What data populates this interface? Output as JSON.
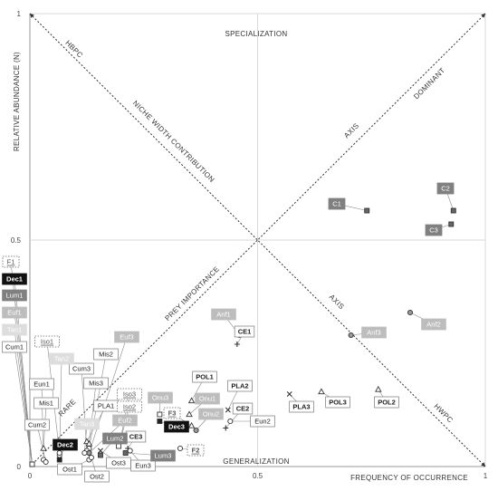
{
  "chart_data": {
    "type": "scatter",
    "title": "",
    "xlabel": "FREQUENCY OF OCCURRENCE",
    "ylabel": "RELATIVE ABUNDANCE (N)",
    "xlim": [
      0,
      1
    ],
    "ylim": [
      0,
      1
    ],
    "x_ticks": [
      {
        "v": 0,
        "t": "0"
      },
      {
        "v": 0.5,
        "t": "0.5"
      },
      {
        "v": 1,
        "t": "1"
      }
    ],
    "y_ticks": [
      {
        "v": 0,
        "t": "0"
      },
      {
        "v": 0.5,
        "t": "0.5"
      },
      {
        "v": 1,
        "t": "1"
      }
    ],
    "grid": true,
    "annotations": {
      "specialization": "SPECIALIZATION",
      "generalization": "GENERALIZATION",
      "hbpc": "HBPC",
      "niche_width": "NICHE WIDTH CONTRIBUTION",
      "dominant": "DOMINANT",
      "axis_upper": "AXIS",
      "prey_importance": "PREY IMPORTANCE",
      "rare": "RARE",
      "axis_lower": "AXIS",
      "hwpc": "HWPC"
    },
    "points": [
      {
        "label": "C1",
        "x": 0.74,
        "y": 0.565,
        "marker": "square",
        "style": "mid"
      },
      {
        "label": "C2",
        "x": 0.93,
        "y": 0.565,
        "marker": "square",
        "style": "mid"
      },
      {
        "label": "C3",
        "x": 0.925,
        "y": 0.535,
        "marker": "square",
        "style": "mid"
      },
      {
        "label": "Anf1",
        "x": 0.46,
        "y": 0.29,
        "marker": "circle",
        "style": "light"
      },
      {
        "label": "Anf2",
        "x": 0.835,
        "y": 0.34,
        "marker": "circle",
        "style": "light"
      },
      {
        "label": "Anf3",
        "x": 0.705,
        "y": 0.29,
        "marker": "circle",
        "style": "light"
      },
      {
        "label": "CE1",
        "x": 0.455,
        "y": 0.27,
        "marker": "plus",
        "style": "white"
      },
      {
        "label": "POL1",
        "x": 0.355,
        "y": 0.145,
        "marker": "triangle",
        "style": "white"
      },
      {
        "label": "POL2",
        "x": 0.765,
        "y": 0.17,
        "marker": "triangle",
        "style": "white"
      },
      {
        "label": "POL3",
        "x": 0.64,
        "y": 0.165,
        "marker": "triangle",
        "style": "white"
      },
      {
        "label": "PLA1",
        "x": 0.125,
        "y": 0.055,
        "marker": "triangle",
        "style": "white"
      },
      {
        "label": "PLA2",
        "x": 0.435,
        "y": 0.125,
        "marker": "x",
        "style": "white"
      },
      {
        "label": "PLA3",
        "x": 0.57,
        "y": 0.16,
        "marker": "x",
        "style": "white"
      },
      {
        "label": "CE2",
        "x": 0.43,
        "y": 0.085,
        "marker": "plus",
        "style": "white"
      },
      {
        "label": "CE3",
        "x": 0.215,
        "y": 0.04,
        "marker": "plus",
        "style": "white"
      },
      {
        "label": "Onu1",
        "x": 0.35,
        "y": 0.115,
        "marker": "triangle",
        "style": "light"
      },
      {
        "label": "Onu2",
        "x": 0.365,
        "y": 0.08,
        "marker": "circle",
        "style": "light"
      },
      {
        "label": "Onu3",
        "x": 0.285,
        "y": 0.115,
        "marker": "square",
        "style": "light"
      },
      {
        "label": "Eun1",
        "x": 0.03,
        "y": 0.015,
        "marker": "circle",
        "style": "white"
      },
      {
        "label": "Eun2",
        "x": 0.44,
        "y": 0.1,
        "marker": "circle",
        "style": "white"
      },
      {
        "label": "Eun3",
        "x": 0.22,
        "y": 0.035,
        "marker": "circle",
        "style": "white"
      },
      {
        "label": "Mis1",
        "x": 0.03,
        "y": 0.04,
        "marker": "triangle",
        "style": "white"
      },
      {
        "label": "Mis2",
        "x": 0.13,
        "y": 0.04,
        "marker": "circle",
        "style": "white"
      },
      {
        "label": "Mis3",
        "x": 0.13,
        "y": 0.05,
        "marker": "triangle",
        "style": "white"
      },
      {
        "label": "Cum1",
        "x": 0.005,
        "y": 0.005,
        "marker": "square",
        "style": "white"
      },
      {
        "label": "Cum2",
        "x": 0.035,
        "y": 0.01,
        "marker": "circle",
        "style": "white"
      },
      {
        "label": "Cum3",
        "x": 0.125,
        "y": 0.035,
        "marker": "circle",
        "style": "white"
      },
      {
        "label": "Dec1",
        "x": 0.005,
        "y": 0.005,
        "marker": "square",
        "style": "dark"
      },
      {
        "label": "Dec2",
        "x": 0.065,
        "y": 0.015,
        "marker": "square",
        "style": "dark"
      },
      {
        "label": "Dec3",
        "x": 0.285,
        "y": 0.1,
        "marker": "square",
        "style": "dark"
      },
      {
        "label": "Lum1",
        "x": 0.005,
        "y": 0.005,
        "marker": "square",
        "style": "mid"
      },
      {
        "label": "Lum2",
        "x": 0.155,
        "y": 0.025,
        "marker": "square",
        "style": "mid"
      },
      {
        "label": "Lum3",
        "x": 0.21,
        "y": 0.03,
        "marker": "square",
        "style": "mid"
      },
      {
        "label": "Euf1",
        "x": 0.005,
        "y": 0.005,
        "marker": "square",
        "style": "light"
      },
      {
        "label": "Euf2",
        "x": 0.13,
        "y": 0.03,
        "marker": "circle",
        "style": "light"
      },
      {
        "label": "Euf3",
        "x": 0.13,
        "y": 0.03,
        "marker": "circle",
        "style": "light"
      },
      {
        "label": "Tan1",
        "x": 0.005,
        "y": 0.005,
        "marker": "square",
        "style": "pale"
      },
      {
        "label": "Tan2",
        "x": 0.065,
        "y": 0.025,
        "marker": "circle",
        "style": "pale"
      },
      {
        "label": "Tan3",
        "x": 0.12,
        "y": 0.03,
        "marker": "circle",
        "style": "pale"
      },
      {
        "label": "F1",
        "x": 0.005,
        "y": 0.005,
        "marker": "square",
        "style": "dotted"
      },
      {
        "label": "F2",
        "x": 0.33,
        "y": 0.04,
        "marker": "circle",
        "style": "dotted"
      },
      {
        "label": "F3",
        "x": 0.355,
        "y": 0.09,
        "marker": "triangle",
        "style": "dotted"
      },
      {
        "label": "Iso1",
        "x": 0.065,
        "y": 0.03,
        "marker": "circle",
        "style": "dotted"
      },
      {
        "label": "Iso2",
        "x": 0.195,
        "y": 0.045,
        "marker": "square",
        "style": "dotted"
      },
      {
        "label": "Iso3",
        "x": 0.2,
        "y": 0.065,
        "marker": "x",
        "style": "dotted"
      },
      {
        "label": "Ost1",
        "x": 0.13,
        "y": 0.015,
        "marker": "circle",
        "style": "white"
      },
      {
        "label": "Ost2",
        "x": 0.135,
        "y": 0.02,
        "marker": "circle",
        "style": "white"
      },
      {
        "label": "Ost3",
        "x": 0.155,
        "y": 0.035,
        "marker": "x",
        "style": "white"
      }
    ]
  }
}
